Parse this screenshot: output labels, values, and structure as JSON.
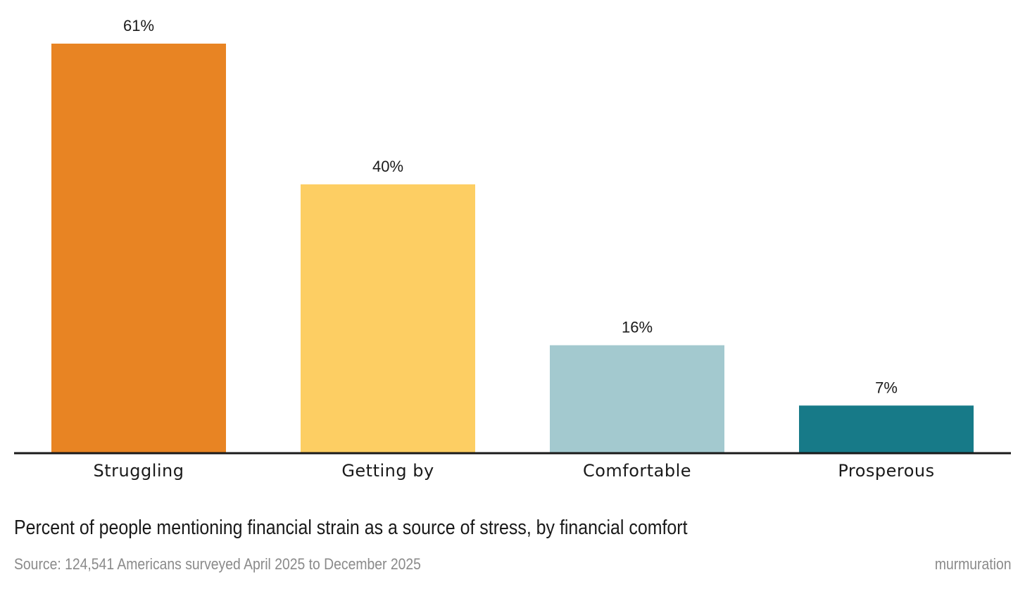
{
  "chart_data": {
    "type": "bar",
    "categories": [
      "Struggling",
      "Getting by",
      "Comfortable",
      "Prosperous"
    ],
    "values": [
      61,
      40,
      16,
      7
    ],
    "value_labels": [
      "61%",
      "40%",
      "16%",
      "7%"
    ],
    "colors": [
      "#E88423",
      "#FDCE63",
      "#A3C9CF",
      "#177A88"
    ],
    "unit": "%",
    "ylim": [
      0,
      61
    ],
    "grid": false,
    "legend": "none"
  },
  "caption": "Percent of people mentioning financial strain as a source of stress, by financial comfort",
  "source": "Source: 124,541 Americans surveyed April 2025 to December 2025",
  "brand": "murmuration",
  "axis_color": "#1a1a1a"
}
